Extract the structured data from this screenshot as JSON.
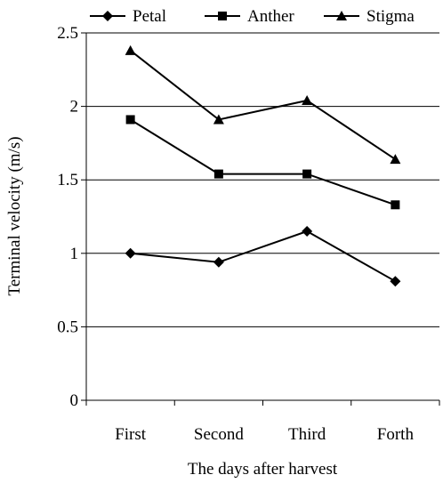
{
  "chart_data": {
    "type": "line",
    "title": "",
    "xlabel": "The days after harvest",
    "ylabel": "Terminal velocity (m/s)",
    "categories": [
      "First",
      "Second",
      "Third",
      "Forth"
    ],
    "ylim": [
      0,
      2.5
    ],
    "yticks": [
      0,
      0.5,
      1,
      1.5,
      2,
      2.5
    ],
    "ytick_labels": [
      "0",
      "0.5",
      "1",
      "1.5",
      "2",
      "2.5"
    ],
    "grid": true,
    "legend_position": "top",
    "series": [
      {
        "name": "Petal",
        "marker": "diamond",
        "color": "#000000",
        "values": [
          1.0,
          0.94,
          1.15,
          0.81
        ]
      },
      {
        "name": "Anther",
        "marker": "square",
        "color": "#000000",
        "values": [
          1.91,
          1.54,
          1.54,
          1.33
        ]
      },
      {
        "name": "Stigma",
        "marker": "triangle",
        "color": "#000000",
        "values": [
          2.38,
          1.91,
          2.04,
          1.64
        ]
      }
    ]
  }
}
